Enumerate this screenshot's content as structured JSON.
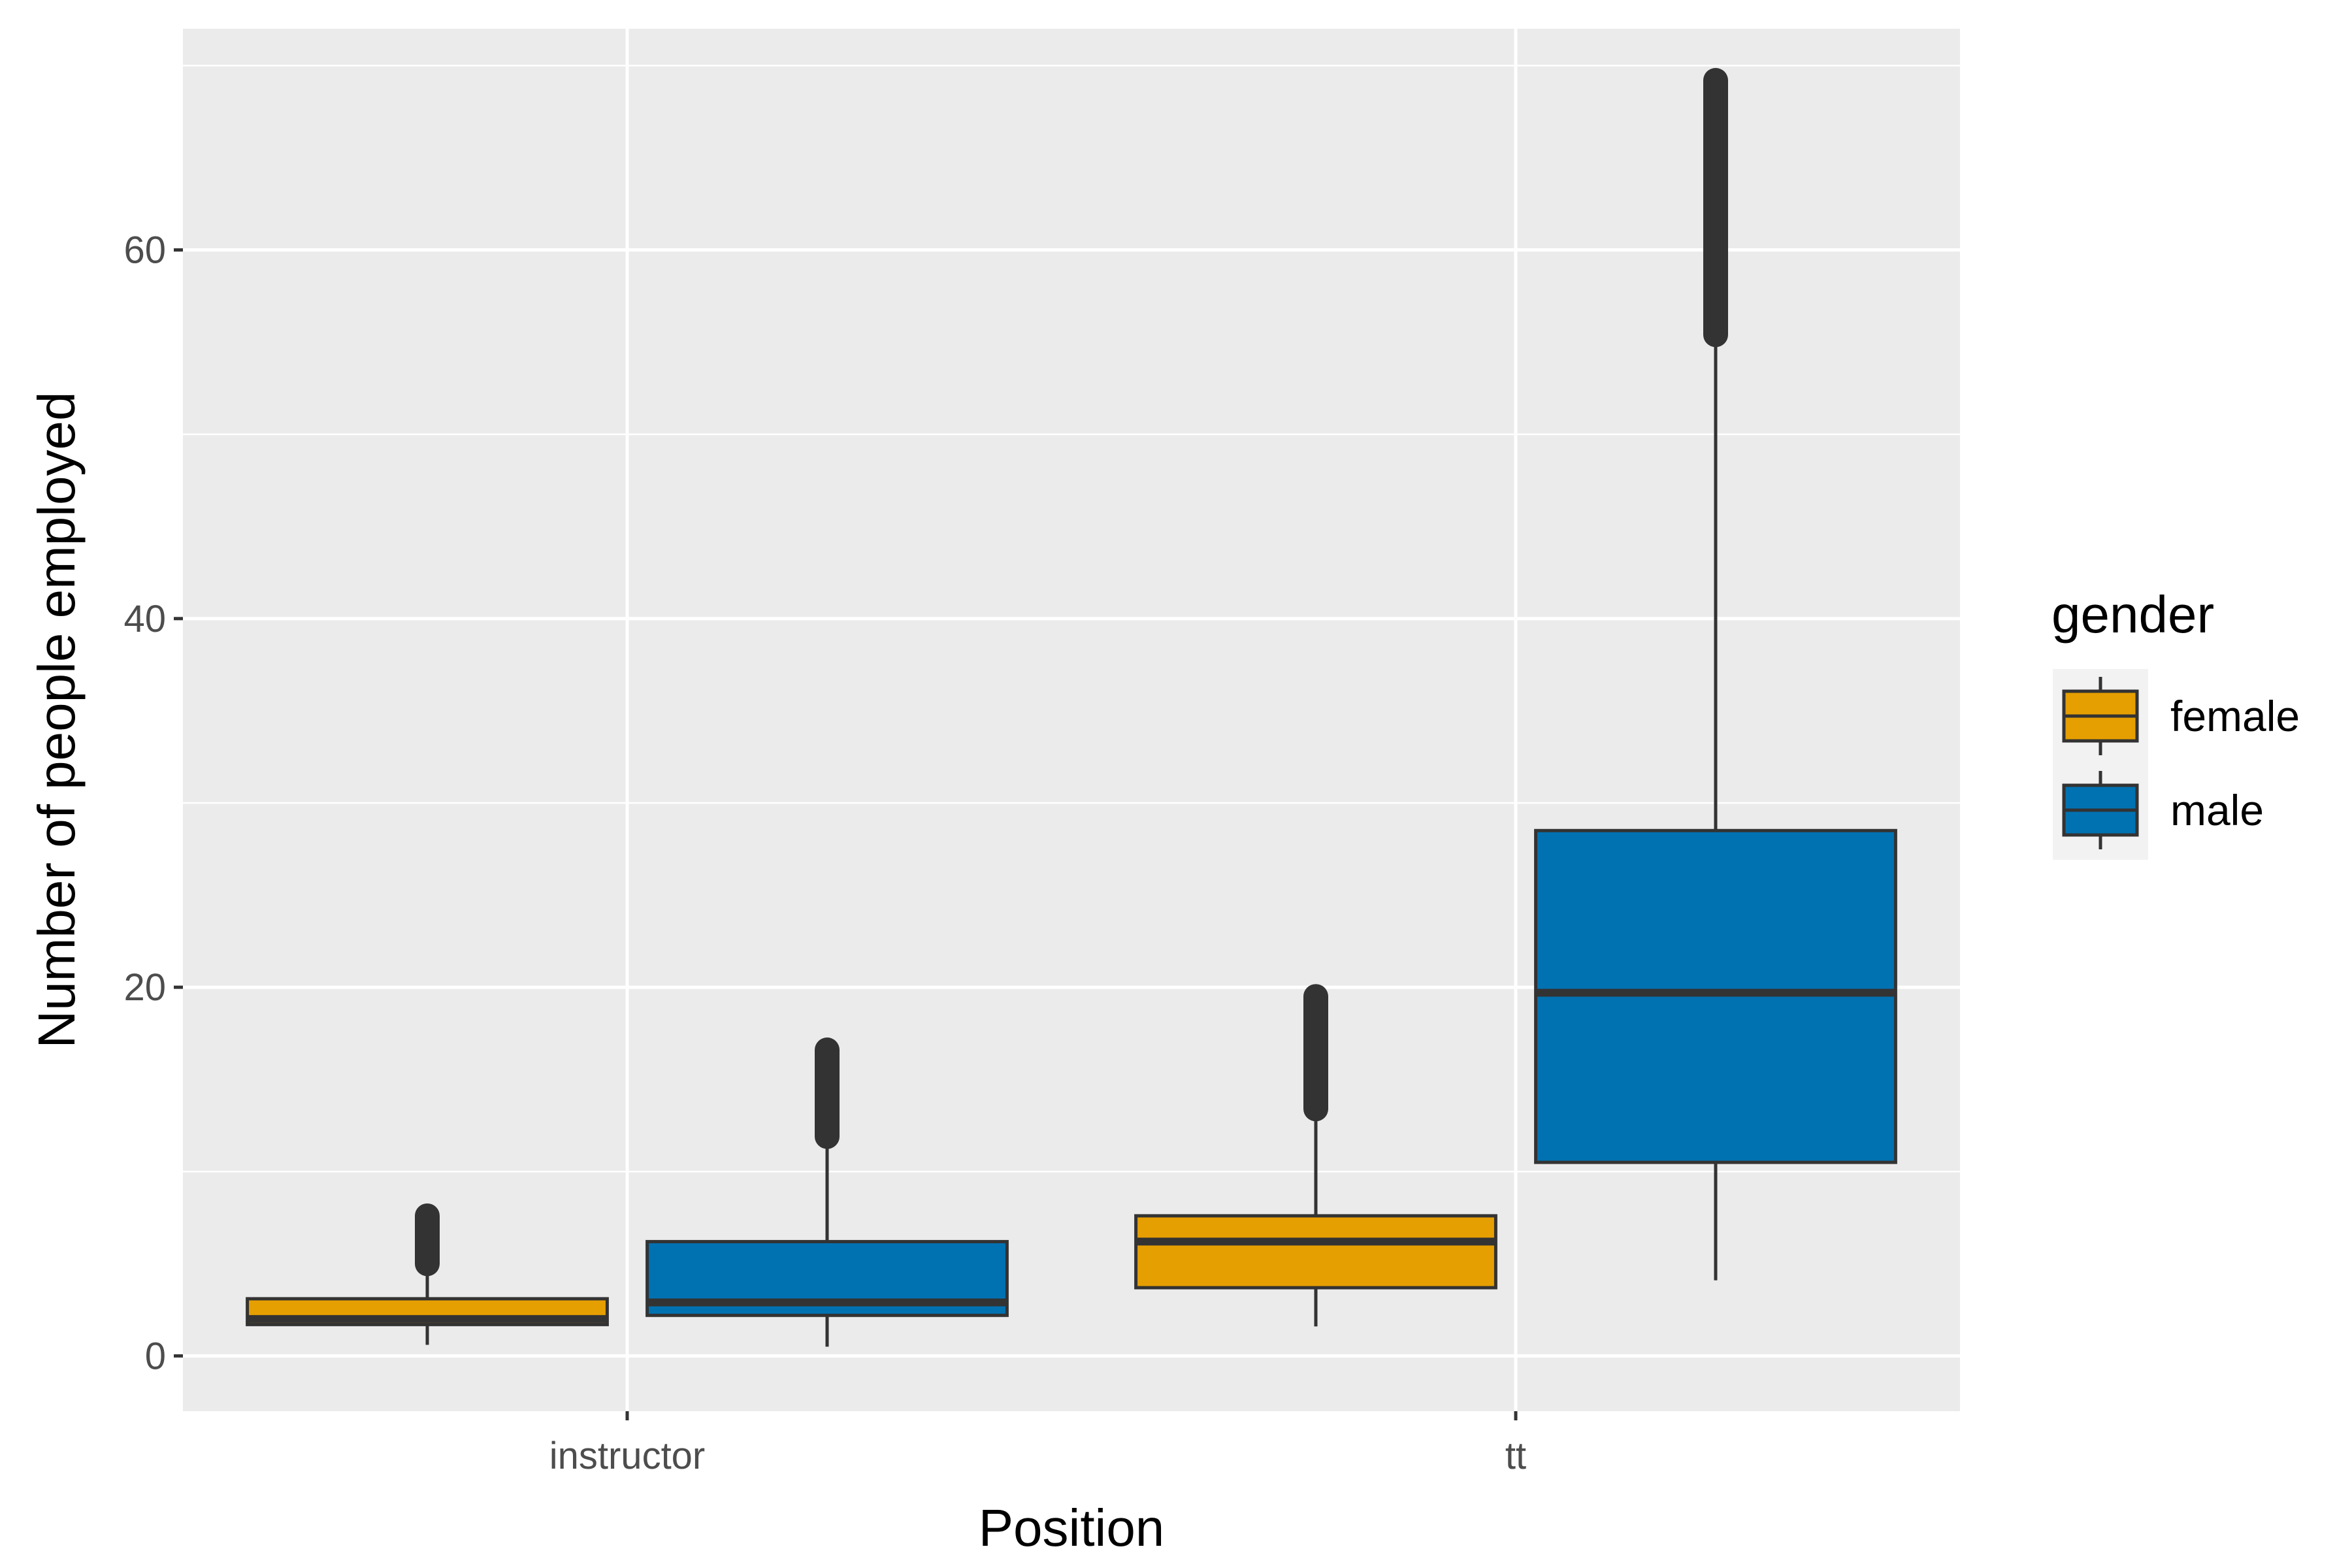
{
  "chart_data": {
    "type": "box",
    "xlabel": "Position",
    "ylabel": "Number of people employed",
    "ylim": [
      -3,
      72
    ],
    "y_ticks": [
      0,
      20,
      40,
      60
    ],
    "y_tick_labels": [
      "0",
      "20",
      "40",
      "60"
    ],
    "grid": true,
    "categories": [
      "instructor",
      "tt"
    ],
    "legend": {
      "title": "gender",
      "position": "right",
      "entries": [
        "female",
        "male"
      ]
    },
    "series": [
      {
        "name": "female",
        "color": "#E69F00",
        "boxes": [
          {
            "category": "instructor",
            "whisker_low": 0.6,
            "q1": 1.7,
            "median": 2.0,
            "q3": 3.1,
            "whisker_high": 4.6,
            "outliers_low": 5.0,
            "outliers_high": 7.6
          },
          {
            "category": "tt",
            "whisker_low": 1.6,
            "q1": 3.7,
            "median": 6.2,
            "q3": 7.6,
            "whisker_high": 13.2,
            "outliers_low": 13.4,
            "outliers_high": 19.5
          }
        ]
      },
      {
        "name": "male",
        "color": "#0072B2",
        "boxes": [
          {
            "category": "instructor",
            "whisker_low": 0.5,
            "q1": 2.2,
            "median": 2.9,
            "q3": 6.2,
            "whisker_high": 11.5,
            "outliers_low": 11.9,
            "outliers_high": 16.6
          },
          {
            "category": "tt",
            "whisker_low": 4.1,
            "q1": 10.5,
            "median": 19.7,
            "q3": 28.5,
            "whisker_high": 55.2,
            "outliers_low": 55.4,
            "outliers_high": 69.2
          }
        ]
      }
    ]
  }
}
